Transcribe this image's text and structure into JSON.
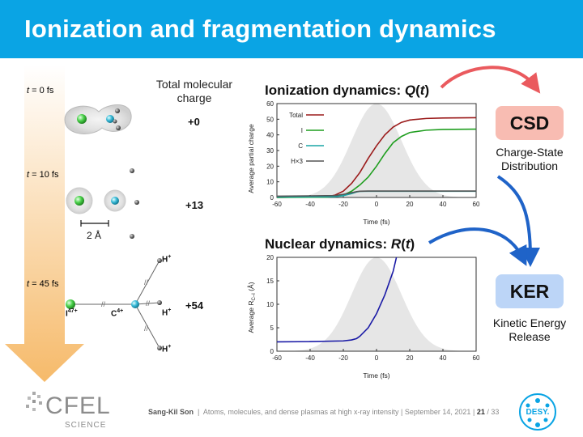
{
  "title": "Ionization and fragmentation dynamics",
  "left": {
    "time_labels": [
      {
        "var": "t",
        "rest": " = 0 fs"
      },
      {
        "var": "t",
        "rest": " = 10 fs"
      },
      {
        "var": "t",
        "rest": " = 45 fs"
      }
    ],
    "charge_header": "Total molecular charge",
    "charges": [
      "+0",
      "+13",
      "+54"
    ],
    "scale_label": "2 Å",
    "atoms": {
      "h": "H",
      "h_sup": "+",
      "i": "I",
      "i_sup": "47+",
      "c": "C",
      "c_sup": "4+"
    }
  },
  "chart1_title": {
    "prefix": "Ionization dynamics: ",
    "var": "Q",
    "open": "(",
    "arg": "t",
    "close": ")"
  },
  "chart2_title": {
    "prefix": "Nuclear dynamics: ",
    "var": "R",
    "open": "(",
    "arg": "t",
    "close": ")"
  },
  "chart_data": [
    {
      "type": "line",
      "ylabel": "Average partial charge",
      "xlabel": "Time (fs)",
      "xlim": [
        -60,
        60
      ],
      "ylim": [
        0,
        60
      ],
      "xticks": [
        -60,
        -40,
        -20,
        0,
        20,
        40,
        60
      ],
      "yticks": [
        0,
        10,
        20,
        30,
        40,
        50,
        60
      ],
      "background": "gaussian pulse centered at 0 fs",
      "legend_position": "top-left",
      "series": [
        {
          "name": "Total",
          "color": "#9b1b1b",
          "x": [
            -60,
            -30,
            -25,
            -20,
            -15,
            -10,
            -5,
            0,
            5,
            10,
            15,
            20,
            30,
            40,
            60
          ],
          "y": [
            0,
            0.5,
            1.5,
            4,
            9,
            16,
            25,
            33,
            40,
            45,
            48,
            49.5,
            50.5,
            50.8,
            51
          ]
        },
        {
          "name": "I",
          "color": "#1f9e1f",
          "x": [
            -60,
            -30,
            -25,
            -20,
            -15,
            -10,
            -5,
            0,
            5,
            10,
            15,
            20,
            30,
            40,
            60
          ],
          "y": [
            0,
            0.2,
            0.6,
            1.5,
            4,
            8,
            13,
            20,
            28,
            35,
            39,
            41.5,
            43,
            43.5,
            43.7
          ]
        },
        {
          "name": "C",
          "color": "#1aa6a6",
          "x": [
            -60,
            -25,
            -20,
            -15,
            -12,
            -10,
            -5,
            0,
            60
          ],
          "y": [
            0.3,
            0.5,
            1.2,
            2.5,
            3.5,
            3.9,
            4,
            4,
            4
          ]
        },
        {
          "name": "H×3",
          "color": "#555555",
          "x": [
            -60,
            -25,
            -20,
            -15,
            -12,
            -10,
            -5,
            0,
            60
          ],
          "y": [
            0.8,
            1.2,
            2,
            3,
            3.7,
            4,
            4.1,
            4.1,
            4.1
          ]
        }
      ]
    },
    {
      "type": "line",
      "ylabel": "Average R",
      "ylabel_sub": "C–I",
      "ylabel_unit": " (Å)",
      "xlabel": "Time (fs)",
      "xlim": [
        -60,
        60
      ],
      "ylim": [
        0,
        20
      ],
      "xticks": [
        -60,
        -40,
        -20,
        0,
        20,
        40,
        60
      ],
      "yticks": [
        0,
        5,
        10,
        15,
        20
      ],
      "background": "gaussian pulse centered at 0 fs",
      "series": [
        {
          "color": "#1a1aa6",
          "x": [
            -60,
            -40,
            -20,
            -15,
            -12,
            -10,
            -5,
            0,
            5,
            10,
            12
          ],
          "y": [
            2,
            2.05,
            2.2,
            2.4,
            2.7,
            3.2,
            5,
            8,
            12,
            17,
            20
          ]
        }
      ]
    }
  ],
  "boxes": [
    {
      "label": "CSD",
      "desc": "Charge-State Distribution",
      "color": "#f8bcb2"
    },
    {
      "label": "KER",
      "desc": "Kinetic Energy Release",
      "color": "#bcd5f7"
    }
  ],
  "footer": {
    "author": "Sang-Kil Son",
    "sep1": "|",
    "talk": "Atoms, molecules, and dense plasmas at high x-ray intensity",
    "sep2": "|",
    "date": "September 14, 2021",
    "sep3": "|",
    "page": "21",
    "slash": "/",
    "total": "33"
  },
  "logos": {
    "cfel_main": "CFEL",
    "cfel_sub": "SCIENCE",
    "desy": "DESY."
  },
  "colors": {
    "title_bar": "#0aa4e4",
    "arrow_gradient_top": "#ffffff",
    "arrow_gradient_bottom": "#f6ba6a",
    "curve_arrow_red": "#ea5a5e",
    "curve_arrow_blue": "#1f63c8"
  }
}
